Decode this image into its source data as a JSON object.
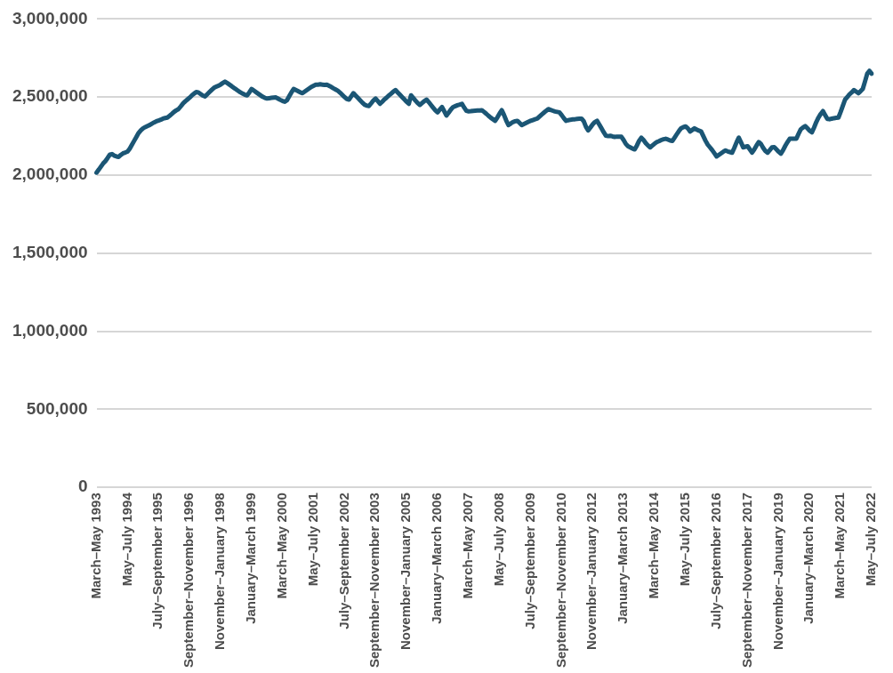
{
  "chart_data": {
    "type": "line",
    "categories": [
      "March–May 1993",
      null,
      null,
      null,
      null,
      null,
      null,
      null,
      null,
      null,
      null,
      null,
      null,
      null,
      "May–July 1994",
      null,
      null,
      null,
      null,
      null,
      null,
      null,
      null,
      null,
      null,
      null,
      null,
      null,
      "July–September 1995",
      null,
      null,
      null,
      null,
      null,
      null,
      null,
      null,
      null,
      null,
      null,
      null,
      null,
      "September–November 1996",
      null,
      null,
      null,
      null,
      null,
      null,
      null,
      null,
      null,
      null,
      null,
      null,
      null,
      "November–January 1998",
      null,
      null,
      null,
      null,
      null,
      null,
      null,
      null,
      null,
      null,
      null,
      null,
      null,
      "January–March 1999",
      null,
      null,
      null,
      null,
      null,
      null,
      null,
      null,
      null,
      null,
      null,
      null,
      null,
      "March–May 2000",
      null,
      null,
      null,
      null,
      null,
      null,
      null,
      null,
      null,
      null,
      null,
      null,
      null,
      "May–July 2001",
      null,
      null,
      null,
      null,
      null,
      null,
      null,
      null,
      null,
      null,
      null,
      null,
      null,
      "July–September 2002",
      null,
      null,
      null,
      null,
      null,
      null,
      null,
      null,
      null,
      null,
      null,
      null,
      null,
      "September–November 2003",
      null,
      null,
      null,
      null,
      null,
      null,
      null,
      null,
      null,
      null,
      null,
      null,
      null,
      "November–January 2005",
      null,
      null,
      null,
      null,
      null,
      null,
      null,
      null,
      null,
      null,
      null,
      null,
      null,
      "January–March 2006",
      null,
      null,
      null,
      null,
      null,
      null,
      null,
      null,
      null,
      null,
      null,
      null,
      null,
      "March–May 2007",
      null,
      null,
      null,
      null,
      null,
      null,
      null,
      null,
      null,
      null,
      null,
      null,
      null,
      "May–July 2008",
      null,
      null,
      null,
      null,
      null,
      null,
      null,
      null,
      null,
      null,
      null,
      null,
      null,
      "July–September 2009",
      null,
      null,
      null,
      null,
      null,
      null,
      null,
      null,
      null,
      null,
      null,
      null,
      null,
      "September–November 2010",
      null,
      null,
      null,
      null,
      null,
      null,
      null,
      null,
      null,
      null,
      null,
      null,
      null,
      "November–January 2012",
      null,
      null,
      null,
      null,
      null,
      null,
      null,
      null,
      null,
      null,
      null,
      null,
      null,
      "January–March 2013",
      null,
      null,
      null,
      null,
      null,
      null,
      null,
      null,
      null,
      null,
      null,
      null,
      null,
      "March–May 2014",
      null,
      null,
      null,
      null,
      null,
      null,
      null,
      null,
      null,
      null,
      null,
      null,
      null,
      "May–July 2015",
      null,
      null,
      null,
      null,
      null,
      null,
      null,
      null,
      null,
      null,
      null,
      null,
      null,
      "July–September 2016",
      null,
      null,
      null,
      null,
      null,
      null,
      null,
      null,
      null,
      null,
      null,
      null,
      null,
      "September–November 2017",
      null,
      null,
      null,
      null,
      null,
      null,
      null,
      null,
      null,
      null,
      null,
      null,
      null,
      "November–January 2019",
      null,
      null,
      null,
      null,
      null,
      null,
      null,
      null,
      null,
      null,
      null,
      null,
      null,
      "January–March 2020",
      null,
      null,
      null,
      null,
      null,
      null,
      null,
      null,
      null,
      null,
      null,
      null,
      null,
      "March–May 2021",
      null,
      null,
      null,
      null,
      null,
      null,
      null,
      null,
      null,
      null,
      null,
      null,
      null,
      "May–July 2022"
    ],
    "series": [
      {
        "color": "#1b5675",
        "values": [
          2016000,
          2035000,
          2055000,
          2075000,
          2090000,
          2110000,
          2131000,
          2135000,
          2125000,
          2120000,
          2117000,
          2130000,
          2140000,
          2145000,
          2151000,
          2170000,
          2195000,
          2220000,
          2245000,
          2270000,
          2287000,
          2300000,
          2308000,
          2315000,
          2321000,
          2330000,
          2338000,
          2345000,
          2350000,
          2355000,
          2362000,
          2366000,
          2369000,
          2380000,
          2392000,
          2405000,
          2415000,
          2423000,
          2440000,
          2458000,
          2472000,
          2484000,
          2496000,
          2510000,
          2522000,
          2532000,
          2530000,
          2520000,
          2510000,
          2504000,
          2518000,
          2532000,
          2546000,
          2559000,
          2566000,
          2573000,
          2580000,
          2590000,
          2599000,
          2590000,
          2580000,
          2570000,
          2559000,
          2550000,
          2540000,
          2530000,
          2522000,
          2515000,
          2511000,
          2530000,
          2552000,
          2542000,
          2532000,
          2522000,
          2512000,
          2502000,
          2495000,
          2491000,
          2493000,
          2495000,
          2497000,
          2498000,
          2490000,
          2482000,
          2475000,
          2470000,
          2480000,
          2505000,
          2530000,
          2552000,
          2545000,
          2538000,
          2530000,
          2525000,
          2535000,
          2545000,
          2555000,
          2565000,
          2572000,
          2579000,
          2580000,
          2582000,
          2580000,
          2578000,
          2579000,
          2572000,
          2565000,
          2556000,
          2548000,
          2540000,
          2528000,
          2514000,
          2500000,
          2488000,
          2484000,
          2505000,
          2525000,
          2510000,
          2495000,
          2480000,
          2465000,
          2452000,
          2445000,
          2443000,
          2460000,
          2478000,
          2491000,
          2475000,
          2457000,
          2470000,
          2485000,
          2497000,
          2510000,
          2522000,
          2535000,
          2545000,
          2530000,
          2515000,
          2500000,
          2485000,
          2470000,
          2457000,
          2511000,
          2495000,
          2478000,
          2462000,
          2450000,
          2462000,
          2474000,
          2484000,
          2468000,
          2450000,
          2432000,
          2415000,
          2402000,
          2420000,
          2436000,
          2410000,
          2382000,
          2400000,
          2420000,
          2436000,
          2442000,
          2448000,
          2452000,
          2457000,
          2433000,
          2412000,
          2409000,
          2410000,
          2412000,
          2413000,
          2414000,
          2415000,
          2416000,
          2405000,
          2393000,
          2380000,
          2368000,
          2358000,
          2348000,
          2370000,
          2395000,
          2416000,
          2385000,
          2350000,
          2321000,
          2330000,
          2340000,
          2345000,
          2348000,
          2335000,
          2321000,
          2328000,
          2335000,
          2342000,
          2348000,
          2353000,
          2358000,
          2362000,
          2375000,
          2388000,
          2400000,
          2412000,
          2423000,
          2418000,
          2413000,
          2408000,
          2405000,
          2402000,
          2385000,
          2365000,
          2348000,
          2352000,
          2355000,
          2357000,
          2358000,
          2360000,
          2361000,
          2362000,
          2345000,
          2310000,
          2287000,
          2305000,
          2325000,
          2340000,
          2348000,
          2325000,
          2300000,
          2275000,
          2253000,
          2250000,
          2252000,
          2248000,
          2245000,
          2247000,
          2246000,
          2246000,
          2225000,
          2200000,
          2185000,
          2178000,
          2170000,
          2165000,
          2190000,
          2220000,
          2240000,
          2225000,
          2205000,
          2190000,
          2178000,
          2190000,
          2202000,
          2212000,
          2218000,
          2225000,
          2230000,
          2233000,
          2228000,
          2222000,
          2219000,
          2240000,
          2262000,
          2283000,
          2301000,
          2308000,
          2312000,
          2300000,
          2280000,
          2290000,
          2300000,
          2292000,
          2285000,
          2280000,
          2250000,
          2220000,
          2195000,
          2178000,
          2160000,
          2140000,
          2120000,
          2130000,
          2140000,
          2150000,
          2158000,
          2152000,
          2148000,
          2144000,
          2175000,
          2210000,
          2240000,
          2210000,
          2178000,
          2182000,
          2185000,
          2165000,
          2144000,
          2165000,
          2190000,
          2212000,
          2200000,
          2175000,
          2155000,
          2144000,
          2160000,
          2178000,
          2180000,
          2165000,
          2150000,
          2138000,
          2160000,
          2188000,
          2212000,
          2233000,
          2233000,
          2234000,
          2233000,
          2265000,
          2294000,
          2305000,
          2314000,
          2300000,
          2285000,
          2274000,
          2305000,
          2340000,
          2369000,
          2392000,
          2410000,
          2385000,
          2360000,
          2358000,
          2362000,
          2365000,
          2367000,
          2369000,
          2405000,
          2445000,
          2484000,
          2500000,
          2518000,
          2530000,
          2545000,
          2535000,
          2525000,
          2538000,
          2552000,
          2600000,
          2650000,
          2668000,
          2650000
        ]
      }
    ],
    "ylim": [
      0,
      3000000
    ],
    "yticks": [
      {
        "value": 0,
        "label": "0"
      },
      {
        "value": 500000,
        "label": "500,000"
      },
      {
        "value": 1000000,
        "label": "1,000,000"
      },
      {
        "value": 1500000,
        "label": "1,500,000"
      },
      {
        "value": 2000000,
        "label": "2,000,000"
      },
      {
        "value": 2500000,
        "label": "2,500,000"
      },
      {
        "value": 3000000,
        "label": "3,000,000"
      }
    ],
    "grid": "y"
  }
}
